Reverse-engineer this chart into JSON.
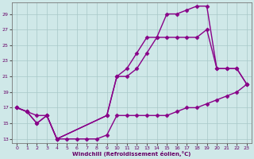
{
  "xlabel": "Windchill (Refroidissement éolien,°C)",
  "xlim": [
    -0.5,
    23.5
  ],
  "ylim": [
    12.5,
    30.5
  ],
  "yticks": [
    13,
    15,
    17,
    19,
    21,
    23,
    25,
    27,
    29
  ],
  "xticks": [
    0,
    1,
    2,
    3,
    4,
    5,
    6,
    7,
    8,
    9,
    10,
    11,
    12,
    13,
    14,
    15,
    16,
    17,
    18,
    19,
    20,
    21,
    22,
    23
  ],
  "background_color": "#cfe8e8",
  "grid_color": "#a8c8c8",
  "line_color": "#880088",
  "line1_x": [
    0,
    1,
    2,
    3,
    4,
    5,
    6,
    7,
    8,
    9,
    10,
    11,
    12,
    13,
    14,
    15,
    16,
    17,
    18,
    19,
    20,
    21,
    22,
    23
  ],
  "line1_y": [
    17,
    16.5,
    16,
    16,
    13,
    13,
    13,
    13,
    13,
    13.5,
    16,
    16,
    16,
    16,
    16,
    16,
    16.5,
    17,
    17,
    17.5,
    18,
    18.5,
    19,
    20
  ],
  "line2_x": [
    0,
    1,
    2,
    3,
    4,
    9,
    10,
    11,
    12,
    13,
    14,
    15,
    16,
    17,
    18,
    19,
    20,
    21,
    22,
    23
  ],
  "line2_y": [
    17,
    16.5,
    15,
    16,
    13,
    16,
    21,
    21,
    22,
    24,
    26,
    26,
    26,
    26,
    26,
    27,
    22,
    22,
    22,
    20
  ],
  "line3_x": [
    0,
    1,
    2,
    3,
    4,
    9,
    10,
    11,
    12,
    13,
    14,
    15,
    16,
    17,
    18,
    19,
    20,
    21,
    22,
    23
  ],
  "line3_y": [
    17,
    16.5,
    15,
    16,
    13,
    16,
    21,
    22,
    24,
    26,
    26,
    29,
    29,
    29.5,
    30,
    30,
    22,
    22,
    22,
    20
  ],
  "marker": "D",
  "markersize": 2.5,
  "linewidth": 1.0
}
